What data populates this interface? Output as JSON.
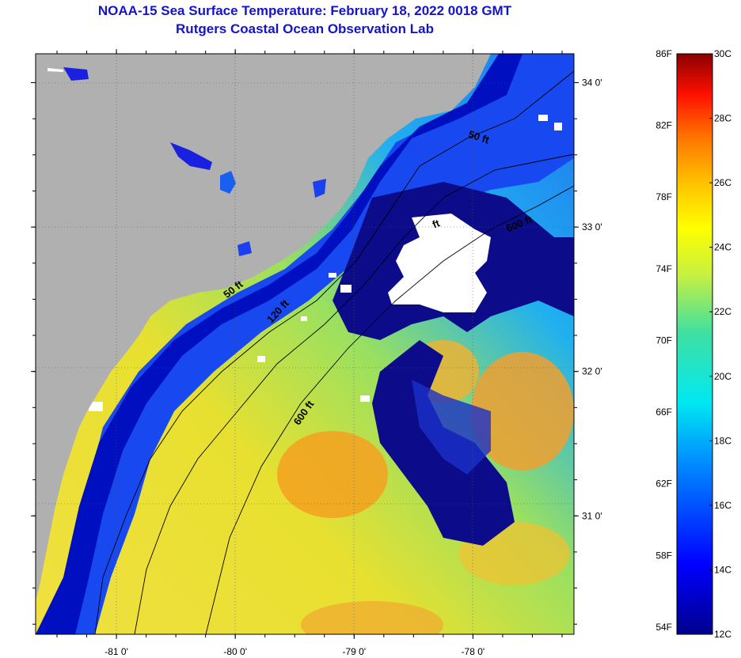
{
  "title": {
    "line1": "NOAA-15 Sea Surface Temperature:  February 18, 2022 0018 GMT",
    "line2": "Rutgers Coastal Ocean Observation Lab"
  },
  "map": {
    "lon_range": [
      -81.68,
      -77.15
    ],
    "lat_range": [
      30.18,
      34.2
    ],
    "lon_ticks": [
      {
        "value": -81,
        "label": "-81 0'"
      },
      {
        "value": -80,
        "label": "-80 0'"
      },
      {
        "value": -79,
        "label": "-79 0'"
      },
      {
        "value": -78,
        "label": "-78 0'"
      }
    ],
    "lat_ticks": [
      {
        "value": 34,
        "label": "34 0'"
      },
      {
        "value": 33,
        "label": "33 0'"
      },
      {
        "value": 32,
        "label": "32 0'"
      },
      {
        "value": 31,
        "label": "31 0'"
      }
    ],
    "contours": [
      {
        "label": "50 ft",
        "rotation": -38,
        "lon": -80.0,
        "lat": 32.55
      },
      {
        "label": "120 ft",
        "rotation": -48,
        "lon": -79.62,
        "lat": 32.4
      },
      {
        "label": "600 ft",
        "rotation": -55,
        "lon": -79.4,
        "lat": 31.7
      },
      {
        "label": "50 ft",
        "rotation": 18,
        "lon": -77.96,
        "lat": 33.6
      },
      {
        "label": "600 ft",
        "rotation": -22,
        "lon": -77.6,
        "lat": 33.0
      },
      {
        "label": "ft",
        "rotation": -22,
        "lon": -78.3,
        "lat": 33.0
      }
    ],
    "colors": {
      "land": "#b0b0b0",
      "cold": "#0c0c8a",
      "cloud": "#ffffff"
    }
  },
  "colorbar": {
    "fahrenheit_labels": [
      "86F",
      "82F",
      "78F",
      "74F",
      "70F",
      "66F",
      "62F",
      "58F",
      "54F"
    ],
    "celsius_labels": [
      "30C",
      "28C",
      "26C",
      "24C",
      "22C",
      "20C",
      "18C",
      "16C",
      "14C",
      "12C"
    ],
    "min_c": 12,
    "max_c": 30
  }
}
